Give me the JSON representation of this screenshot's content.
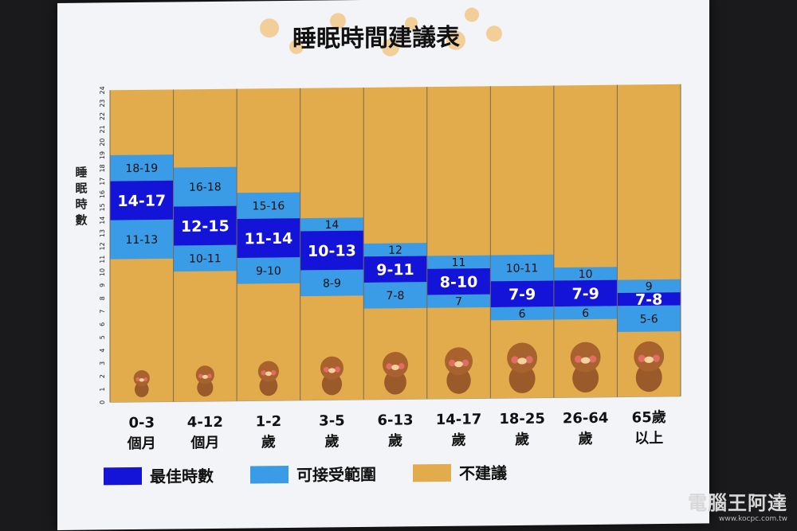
{
  "chart_data": {
    "type": "bar",
    "title": "睡眠時間建議表",
    "ylabel": "睡眠時數",
    "ylim": [
      0,
      24
    ],
    "yticks": [
      0,
      1,
      2,
      3,
      4,
      5,
      6,
      7,
      8,
      9,
      10,
      11,
      12,
      13,
      14,
      15,
      16,
      17,
      18,
      19,
      20,
      21,
      22,
      23,
      24
    ],
    "categories": [
      {
        "line1": "0-3",
        "line2": "個月"
      },
      {
        "line1": "4-12",
        "line2": "個月"
      },
      {
        "line1": "1-2",
        "line2": "歲"
      },
      {
        "line1": "3-5",
        "line2": "歲"
      },
      {
        "line1": "6-13",
        "line2": "歲"
      },
      {
        "line1": "14-17",
        "line2": "歲"
      },
      {
        "line1": "18-25",
        "line2": "歲"
      },
      {
        "line1": "26-64",
        "line2": "歲"
      },
      {
        "line1": "65歲",
        "line2": "以上"
      }
    ],
    "recommended": [
      {
        "low": 14,
        "high": 17,
        "label": "14-17"
      },
      {
        "low": 12,
        "high": 15,
        "label": "12-15"
      },
      {
        "low": 11,
        "high": 14,
        "label": "11-14"
      },
      {
        "low": 10,
        "high": 13,
        "label": "10-13"
      },
      {
        "low": 9,
        "high": 11,
        "label": "9-11"
      },
      {
        "low": 8,
        "high": 10,
        "label": "8-10"
      },
      {
        "low": 7,
        "high": 9,
        "label": "7-9"
      },
      {
        "low": 7,
        "high": 9,
        "label": "7-9"
      },
      {
        "low": 7,
        "high": 8,
        "label": "7-8"
      }
    ],
    "acceptable_upper": [
      {
        "low": 17,
        "high": 19,
        "label": "18-19"
      },
      {
        "low": 15,
        "high": 18,
        "label": "16-18"
      },
      {
        "low": 14,
        "high": 16,
        "label": "15-16"
      },
      {
        "low": 13,
        "high": 14,
        "label": "14"
      },
      {
        "low": 11,
        "high": 12,
        "label": "12"
      },
      {
        "low": 10,
        "high": 11,
        "label": "11"
      },
      {
        "low": 9,
        "high": 11,
        "label": "10-11"
      },
      {
        "low": 9,
        "high": 10,
        "label": "10"
      },
      {
        "low": 8,
        "high": 9,
        "label": "9"
      }
    ],
    "acceptable_lower": [
      {
        "low": 11,
        "high": 14,
        "label": "11-13"
      },
      {
        "low": 10,
        "high": 12,
        "label": "10-11"
      },
      {
        "low": 9,
        "high": 11,
        "label": "9-10"
      },
      {
        "low": 8,
        "high": 10,
        "label": "8-9"
      },
      {
        "low": 7,
        "high": 9,
        "label": "7-8"
      },
      {
        "low": 7,
        "high": 8,
        "label": "7"
      },
      {
        "low": 6,
        "high": 7,
        "label": "6"
      },
      {
        "low": 6,
        "high": 7,
        "label": "6"
      },
      {
        "low": 5,
        "high": 7,
        "label": "5-6"
      }
    ],
    "legend": [
      {
        "label": "最佳時數",
        "color": "#1414d8"
      },
      {
        "label": "可接受範圍",
        "color": "#3a9be6"
      },
      {
        "label": "不建議",
        "color": "#e2ac4c"
      }
    ],
    "grid": false,
    "legend_position": "bottom-left"
  },
  "colors": {
    "recommended": "#1414d8",
    "acceptable": "#3a9be6",
    "not_recommended": "#e2ac4c",
    "screen_bg": "#f3f4f8",
    "title_dots": "#f0b04a"
  },
  "watermark": {
    "logo": "電腦王阿達",
    "url": "www.kocpc.com.tw"
  }
}
